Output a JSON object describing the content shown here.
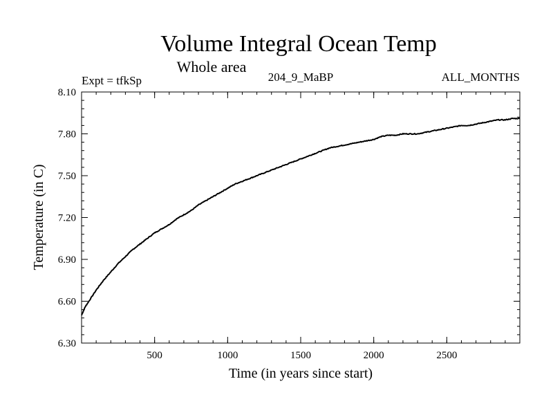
{
  "chart_data": {
    "type": "line",
    "title": "Volume Integral Ocean Temp",
    "subtitle": "Whole area",
    "experiment_label": "Expt = tfkSp",
    "period_label": "204_9_MaBP",
    "months_label": "ALL_MONTHS",
    "xlabel": "Time (in years since start)",
    "ylabel": "Temperature (in C)",
    "xlim": [
      0,
      3000
    ],
    "ylim": [
      6.3,
      8.1
    ],
    "xticks": [
      500,
      1000,
      1500,
      2000,
      2500
    ],
    "xtick_labels": [
      "500",
      "1000",
      "1500",
      "2000",
      "2500"
    ],
    "x_minor_step": 100,
    "yticks": [
      6.3,
      6.6,
      6.9,
      7.2,
      7.5,
      7.8,
      8.1
    ],
    "ytick_labels": [
      "6.30",
      "6.60",
      "6.90",
      "7.20",
      "7.50",
      "7.80",
      "8.10"
    ],
    "y_minor_step": 0.06,
    "grid": false,
    "series": [
      {
        "name": "Volume integral ocean temperature",
        "color": "#000000",
        "x": [
          0,
          25,
          50,
          100,
          150,
          200,
          250,
          300,
          350,
          400,
          450,
          500,
          550,
          600,
          650,
          700,
          750,
          800,
          850,
          900,
          950,
          1000,
          1050,
          1100,
          1150,
          1200,
          1250,
          1300,
          1350,
          1400,
          1450,
          1500,
          1550,
          1600,
          1650,
          1700,
          1750,
          1800,
          1850,
          1900,
          1950,
          2000,
          2050,
          2100,
          2150,
          2200,
          2250,
          2300,
          2350,
          2400,
          2450,
          2500,
          2550,
          2600,
          2650,
          2700,
          2750,
          2800,
          2850,
          2900,
          2950,
          3000
        ],
        "y": [
          6.5,
          6.56,
          6.6,
          6.68,
          6.75,
          6.81,
          6.87,
          6.92,
          6.97,
          7.01,
          7.05,
          7.09,
          7.12,
          7.15,
          7.19,
          7.22,
          7.25,
          7.29,
          7.32,
          7.35,
          7.38,
          7.41,
          7.44,
          7.46,
          7.48,
          7.5,
          7.52,
          7.54,
          7.56,
          7.58,
          7.6,
          7.62,
          7.64,
          7.66,
          7.68,
          7.7,
          7.71,
          7.72,
          7.73,
          7.74,
          7.75,
          7.76,
          7.78,
          7.79,
          7.79,
          7.8,
          7.8,
          7.8,
          7.81,
          7.82,
          7.83,
          7.84,
          7.85,
          7.86,
          7.86,
          7.87,
          7.88,
          7.89,
          7.9,
          7.9,
          7.91,
          7.91
        ]
      }
    ]
  }
}
